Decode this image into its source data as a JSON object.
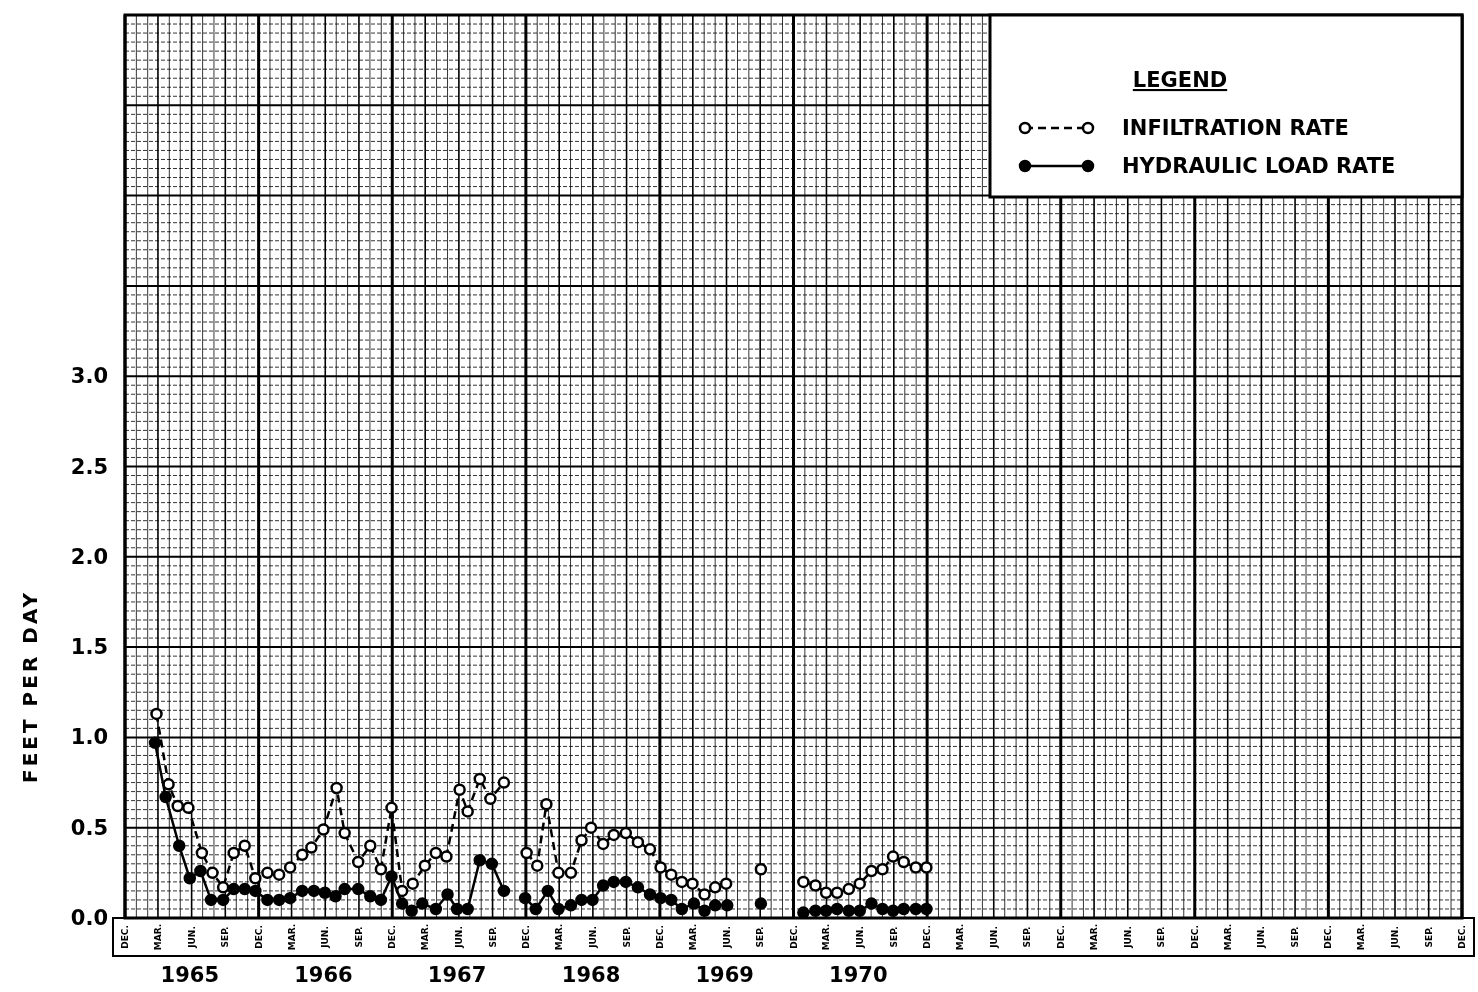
{
  "chart_data": {
    "type": "line",
    "ylabel": "FEET PER DAY",
    "legend_title": "LEGEND",
    "legend": "top right",
    "grid": true,
    "marker": "circle",
    "xlim": [
      "1964-12-01",
      "1974-12-01"
    ],
    "ylim": [
      0,
      5
    ],
    "xticks": [
      {
        "value": "1964-12-01",
        "label": "DEC."
      },
      {
        "value": "1965-03-01",
        "label": "MAR."
      },
      {
        "value": "1965-06-01",
        "label": "JUN."
      },
      {
        "value": "1965-09-01",
        "label": "SEP."
      },
      {
        "value": "1965-12-01",
        "label": "DEC."
      },
      {
        "value": "1966-03-01",
        "label": "MAR."
      },
      {
        "value": "1966-06-01",
        "label": "JUN."
      },
      {
        "value": "1966-09-01",
        "label": "SEP."
      },
      {
        "value": "1966-12-01",
        "label": "DEC."
      },
      {
        "value": "1967-03-01",
        "label": "MAR."
      },
      {
        "value": "1967-06-01",
        "label": "JUN."
      },
      {
        "value": "1967-09-01",
        "label": "SEP."
      },
      {
        "value": "1967-12-01",
        "label": "DEC."
      },
      {
        "value": "1968-03-01",
        "label": "MAR."
      },
      {
        "value": "1968-06-01",
        "label": "JUN."
      },
      {
        "value": "1968-09-01",
        "label": "SEP."
      },
      {
        "value": "1968-12-01",
        "label": "DEC."
      },
      {
        "value": "1969-03-01",
        "label": "MAR."
      },
      {
        "value": "1969-06-01",
        "label": "JUN."
      },
      {
        "value": "1969-09-01",
        "label": "SEP."
      },
      {
        "value": "1969-12-01",
        "label": "DEC."
      },
      {
        "value": "1970-03-01",
        "label": "MAR."
      },
      {
        "value": "1970-06-01",
        "label": "JUN."
      },
      {
        "value": "1970-09-01",
        "label": "SEP."
      },
      {
        "value": "1970-12-01",
        "label": "DEC."
      },
      {
        "value": "1971-03-01",
        "label": "MAR."
      },
      {
        "value": "1971-06-01",
        "label": "JUN."
      },
      {
        "value": "1971-09-01",
        "label": "SEP."
      },
      {
        "value": "1971-12-01",
        "label": "DEC."
      },
      {
        "value": "1972-03-01",
        "label": "MAR."
      },
      {
        "value": "1972-06-01",
        "label": "JUN."
      },
      {
        "value": "1972-09-01",
        "label": "SEP."
      },
      {
        "value": "1972-12-01",
        "label": "DEC."
      },
      {
        "value": "1973-03-01",
        "label": "MAR."
      },
      {
        "value": "1973-06-01",
        "label": "JUN."
      },
      {
        "value": "1973-09-01",
        "label": "SEP."
      },
      {
        "value": "1973-12-01",
        "label": "DEC."
      },
      {
        "value": "1974-03-01",
        "label": "MAR."
      },
      {
        "value": "1974-06-01",
        "label": "JUN."
      },
      {
        "value": "1974-09-01",
        "label": "SEP."
      },
      {
        "value": "1974-12-01",
        "label": "DEC."
      }
    ],
    "annotations": [
      "1965",
      "1966",
      "1967",
      "1968",
      "1969",
      "1970"
    ],
    "yticks": [
      {
        "value": 0,
        "label": "0.0"
      },
      {
        "value": 0.5,
        "label": "0.5"
      },
      {
        "value": 1,
        "label": "1.0"
      },
      {
        "value": 1.5,
        "label": "1.5"
      },
      {
        "value": 2,
        "label": "2.0"
      },
      {
        "value": 2.5,
        "label": "2.5"
      },
      {
        "value": 3,
        "label": "3.0"
      },
      {
        "value": 3.5,
        "label": null
      },
      {
        "value": 4,
        "label": null
      },
      {
        "value": 4.5,
        "label": null
      },
      {
        "value": 5,
        "label": null
      }
    ],
    "series": [
      {
        "name": "INFILTRATION RATE",
        "color": "#000000",
        "line_style": "dashed",
        "x": [
          "1965-02-25",
          "1965-03-30",
          "1965-04-24",
          "1965-05-23",
          "1965-06-29",
          "1965-07-28",
          "1965-08-26",
          "1965-09-24",
          "1965-10-24",
          "1965-11-22",
          "1965-12-25",
          "1966-01-26",
          "1966-02-25",
          "1966-03-30",
          "1966-04-24",
          "1966-05-27",
          "1966-07-02",
          "1966-07-24",
          "1966-08-30",
          "1966-10-02",
          "1966-10-31",
          "1966-11-29",
          "1966-12-28",
          "1967-01-26",
          "1967-02-28",
          "1967-03-30",
          "1967-04-28",
          "1967-06-03",
          "1967-06-25",
          "1967-07-28",
          "1967-08-26",
          "1967-10-02",
          "1967-10-31",
          "1967-12-03",
          "1968-01-01",
          "1968-01-26",
          "1968-02-28",
          "1968-04-02",
          "1968-05-01",
          "1968-05-27",
          "1968-06-29",
          "1968-07-28",
          "1968-08-30",
          "1968-10-02",
          "1968-11-04",
          "1968-12-03",
          "1969-01-01",
          "1969-01-30",
          "1969-02-28",
          "1969-04-02",
          "1969-05-01",
          "1969-05-31",
          "1969-07-02",
          "1969-09-03",
          "1969-10-20",
          "1969-12-28",
          "1970-01-30",
          "1970-02-28",
          "1970-03-30",
          "1970-05-01",
          "1970-05-31",
          "1970-07-02",
          "1970-08-01",
          "1970-08-30",
          "1970-09-28",
          "1970-10-31",
          "1970-11-29"
        ],
        "values": [
          1.13,
          0.74,
          0.62,
          0.61,
          0.36,
          0.25,
          0.17,
          0.36,
          0.4,
          0.22,
          0.25,
          0.24,
          0.28,
          0.35,
          0.39,
          0.49,
          0.72,
          0.47,
          0.31,
          0.4,
          0.27,
          0.61,
          0.15,
          0.19,
          0.29,
          0.36,
          0.34,
          0.71,
          0.59,
          0.77,
          0.66,
          0.75,
          null,
          0.36,
          0.29,
          0.63,
          0.25,
          0.25,
          0.43,
          0.5,
          0.41,
          0.46,
          0.47,
          0.42,
          0.38,
          0.28,
          0.24,
          0.2,
          0.19,
          0.13,
          0.17,
          0.19,
          null,
          0.27,
          null,
          0.2,
          0.18,
          0.14,
          0.14,
          0.16,
          0.19,
          0.26,
          0.27,
          0.34,
          0.31,
          0.28,
          0.28
        ]
      },
      {
        "name": "HYDRAULIC LOAD RATE",
        "color": "#000000",
        "line_style": "solid",
        "x": [
          "1965-02-21",
          "1965-03-22",
          "1965-04-28",
          "1965-05-27",
          "1965-06-25",
          "1965-07-24",
          "1965-08-26",
          "1965-09-24",
          "1965-10-24",
          "1965-11-22",
          "1965-12-25",
          "1966-01-26",
          "1966-02-25",
          "1966-03-30",
          "1966-05-01",
          "1966-05-31",
          "1966-06-29",
          "1966-07-24",
          "1966-08-30",
          "1966-10-02",
          "1966-10-31",
          "1966-11-29",
          "1966-12-28",
          "1967-01-23",
          "1967-02-21",
          "1967-03-30",
          "1967-05-01",
          "1967-05-27",
          "1967-06-25",
          "1967-07-28",
          "1967-08-30",
          "1967-10-02",
          "1967-10-31",
          "1967-11-29",
          "1967-12-28",
          "1968-01-30",
          "1968-02-28",
          "1968-04-02",
          "1968-05-01",
          "1968-05-31",
          "1968-06-29",
          "1968-07-28",
          "1968-08-30",
          "1968-10-02",
          "1968-11-04",
          "1968-12-03",
          "1969-01-01",
          "1969-01-30",
          "1969-03-04",
          "1969-04-02",
          "1969-05-01",
          "1969-06-03",
          "1969-07-02",
          "1969-09-03",
          "1969-10-20",
          "1969-12-28",
          "1970-01-30",
          "1970-02-28",
          "1970-03-30",
          "1970-05-01",
          "1970-05-31",
          "1970-07-02",
          "1970-08-01",
          "1970-08-30",
          "1970-09-28",
          "1970-10-31",
          "1970-11-29"
        ],
        "values": [
          0.97,
          0.67,
          0.4,
          0.22,
          0.26,
          0.1,
          0.1,
          0.16,
          0.16,
          0.15,
          0.1,
          0.1,
          0.11,
          0.15,
          0.15,
          0.14,
          0.12,
          0.16,
          0.16,
          0.12,
          0.1,
          0.23,
          0.08,
          0.04,
          0.08,
          0.05,
          0.13,
          0.05,
          0.05,
          0.32,
          0.3,
          0.15,
          null,
          0.11,
          0.05,
          0.15,
          0.05,
          0.07,
          0.1,
          0.1,
          0.18,
          0.2,
          0.2,
          0.17,
          0.13,
          0.11,
          0.1,
          0.05,
          0.08,
          0.04,
          0.07,
          0.07,
          null,
          0.08,
          null,
          0.03,
          0.04,
          0.04,
          0.05,
          0.04,
          0.04,
          0.08,
          0.05,
          0.04,
          0.05,
          0.05,
          0.05
        ]
      }
    ]
  }
}
